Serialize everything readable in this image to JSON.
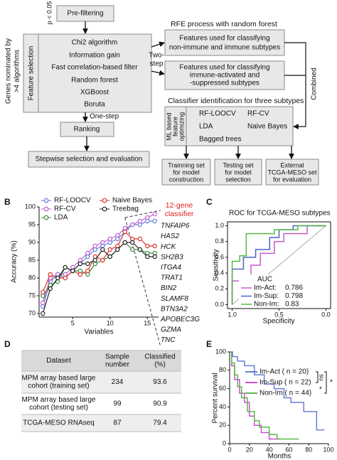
{
  "panel_labels": [
    "B",
    "C",
    "D",
    "E"
  ],
  "diagram": {
    "p_threshold": "p < 0.05",
    "prefiltering": "Pre-filtering",
    "genes_nominated": [
      "Genes nominated by",
      ">4 algorithms"
    ],
    "feature_selection": "Feature selection",
    "methods": [
      "Chi2 algorithm",
      "Information gain",
      "Fast correlation-based filter",
      "Random forest",
      "XGBoost",
      "Boruta"
    ],
    "two_step": [
      "Two-",
      "step"
    ],
    "one_step": "One-step",
    "ranking": "Ranking",
    "stepwise": "Stepwise selection and evaluation",
    "rfe_title": "RFE process with random forest",
    "rfe_boxes": [
      [
        "Features used for classifying",
        "non-immune and immune subtypes"
      ],
      [
        "Features used for classifying",
        "immune-activated and",
        "-suppressed subtypes"
      ]
    ],
    "combined": "Combined",
    "classifier_title": "Classifier identification for three subtypes",
    "ml_label": [
      "ML based",
      "feature",
      "optimizing"
    ],
    "classifiers": [
      "RF-LOOCV",
      "RF-CV",
      "LDA",
      "Naive Bayes",
      "Bagged trees"
    ],
    "sets": [
      [
        "Trainning set",
        "for model",
        "construction"
      ],
      [
        "Testing set",
        "for model",
        "selection"
      ],
      [
        "External",
        "TCGA-MESO set",
        "for evaluation"
      ]
    ]
  },
  "chart_data": [
    {
      "type": "line",
      "xlabel": "Variables",
      "ylabel": "Accuracy (%)",
      "x": [
        1,
        2,
        3,
        4,
        5,
        6,
        7,
        8,
        9,
        10,
        11,
        12,
        13,
        14,
        15,
        16
      ],
      "series": [
        {
          "name": "RF-LOOCV",
          "color": "#5b7fd6",
          "values": [
            72,
            79,
            81,
            80,
            82,
            84,
            86,
            88,
            89,
            90,
            91,
            93,
            95,
            95,
            96,
            96
          ]
        },
        {
          "name": "RF-CV",
          "color": "#c05bd6",
          "values": [
            73,
            80,
            81,
            81,
            83,
            85,
            87,
            89,
            90,
            91,
            92,
            94,
            95,
            96,
            97,
            98
          ]
        },
        {
          "name": "LDA",
          "color": "#3a8a3a",
          "values": [
            75,
            78,
            79,
            83,
            82,
            82,
            81,
            84,
            85,
            86,
            88,
            90,
            88,
            88,
            87,
            87
          ]
        },
        {
          "name": "Naive Bayes",
          "color": "#e03030",
          "values": [
            76,
            81,
            80,
            80,
            82,
            81,
            82,
            86,
            85,
            88,
            89,
            93,
            91,
            91,
            89,
            89
          ]
        },
        {
          "name": "Treebag",
          "color": "#222222",
          "values": [
            70,
            77,
            80,
            83,
            82,
            84,
            84,
            85,
            88,
            86,
            88,
            90,
            90,
            88,
            86,
            86
          ]
        }
      ],
      "xlim": [
        0.5,
        16.5
      ],
      "xticks": [
        5,
        10,
        15
      ],
      "ylim": [
        69,
        100
      ],
      "yticks": [
        70,
        75,
        80,
        85,
        90,
        95,
        100
      ],
      "highlight_x": 12,
      "annotation": [
        "12-gene",
        "classifier"
      ],
      "annotation_color": "#e02020",
      "genes": [
        "TNFAIP6",
        "HAS2",
        "HCK",
        "SH2B3",
        "ITGA4",
        "TRAT1",
        "BIN2",
        "SLAMF8",
        "BTN3A2",
        "APOBEC3G",
        "GZMA",
        "TNC"
      ]
    },
    {
      "type": "roc",
      "title": "ROC for TCGA-MESO subtypes",
      "xlabel": "Specificity",
      "ylabel": "Sensitivity",
      "xlim": [
        1.05,
        -0.05
      ],
      "xticks": [
        {
          "value": 1,
          "label": "1.0"
        },
        {
          "value": 0.5,
          "label": "0.5"
        },
        {
          "value": 0,
          "label": "0.0"
        }
      ],
      "ylim": [
        -0.05,
        1.05
      ],
      "yticks": [
        {
          "value": 0,
          "label": "0.0"
        },
        {
          "value": 0.2,
          "label": "0.2"
        },
        {
          "value": 0.4,
          "label": "0.4"
        },
        {
          "value": 0.6,
          "label": "0.6"
        },
        {
          "value": 0.8,
          "label": "0.8"
        },
        {
          "value": 1,
          "label": "1.0"
        }
      ],
      "legend_title": "AUC",
      "series": [
        {
          "name": "Im-Act:",
          "auc": 0.786,
          "color": "#c85ac8",
          "x": [
            1.0,
            1.0,
            0.8,
            0.8,
            0.7,
            0.7,
            0.55,
            0.55,
            0.45,
            0.45,
            0.2,
            0.2,
            0.0
          ],
          "values": [
            0,
            0.3,
            0.3,
            0.5,
            0.5,
            0.65,
            0.65,
            0.8,
            0.8,
            0.9,
            0.9,
            1.0,
            1.0
          ]
        },
        {
          "name": "Im-Sup:",
          "auc": 0.798,
          "color": "#4d63c8",
          "x": [
            1.0,
            1.0,
            0.88,
            0.88,
            0.75,
            0.75,
            0.6,
            0.6,
            0.5,
            0.5,
            0.35,
            0.35,
            0.0
          ],
          "values": [
            0,
            0.45,
            0.45,
            0.6,
            0.6,
            0.7,
            0.7,
            0.85,
            0.85,
            0.95,
            0.95,
            1.0,
            1.0
          ]
        },
        {
          "name": "Non-Im:",
          "auc": 0.83,
          "color": "#55bb44",
          "x": [
            1.0,
            1.0,
            0.92,
            0.92,
            0.85,
            0.85,
            0.55,
            0.55,
            0.3,
            0.3,
            0.0
          ],
          "values": [
            0,
            0.55,
            0.55,
            0.62,
            0.62,
            0.9,
            0.9,
            0.95,
            0.95,
            1.0,
            1.0
          ]
        }
      ]
    },
    {
      "type": "survival",
      "xlabel": "Months",
      "ylabel": "Percent survival",
      "xlim": [
        0,
        100
      ],
      "xticks": [
        0,
        20,
        40,
        60,
        80,
        100
      ],
      "ylim": [
        0,
        100
      ],
      "yticks": [
        0,
        20,
        40,
        60,
        80,
        100
      ],
      "significance": [
        "ns",
        "*",
        "*"
      ],
      "series": [
        {
          "name": "Im-Act ( n = 20)",
          "color": "#6a7fd8",
          "x": [
            0,
            3,
            3,
            8,
            8,
            15,
            15,
            25,
            25,
            35,
            35,
            45,
            45,
            55,
            55,
            62,
            62,
            75,
            75,
            88,
            88,
            96
          ],
          "values": [
            100,
            100,
            95,
            95,
            90,
            90,
            85,
            85,
            75,
            75,
            65,
            65,
            60,
            60,
            50,
            50,
            45,
            45,
            35,
            35,
            15,
            15
          ]
        },
        {
          "name": "Im-Sup ( n = 22)",
          "color": "#d04fd0",
          "x": [
            0,
            2,
            2,
            5,
            5,
            10,
            10,
            15,
            15,
            20,
            20,
            25,
            25,
            32,
            32,
            40,
            40,
            50
          ],
          "values": [
            100,
            100,
            85,
            85,
            70,
            70,
            55,
            55,
            45,
            45,
            30,
            30,
            20,
            20,
            12,
            12,
            5,
            5
          ]
        },
        {
          "name": "Non-Im ( n = 44)",
          "color": "#58b848",
          "x": [
            0,
            2,
            2,
            5,
            5,
            8,
            8,
            12,
            12,
            18,
            18,
            25,
            25,
            30,
            30,
            40,
            40,
            48,
            48,
            70
          ],
          "values": [
            100,
            100,
            88,
            88,
            75,
            75,
            62,
            62,
            50,
            50,
            35,
            35,
            25,
            25,
            18,
            18,
            10,
            10,
            5,
            5
          ]
        }
      ]
    }
  ],
  "table": {
    "header": [
      "Dataset",
      [
        "Sample",
        "number"
      ],
      [
        "Classified",
        "(%)"
      ]
    ],
    "rows": [
      [
        [
          "MPM array based large",
          "cohort (training set)"
        ],
        234,
        93.6
      ],
      [
        [
          "MPM array based large",
          "cohort (testing set)"
        ],
        99,
        90.9
      ],
      [
        [
          "TCGA-MESO RNAseq"
        ],
        87,
        79.4
      ]
    ]
  }
}
